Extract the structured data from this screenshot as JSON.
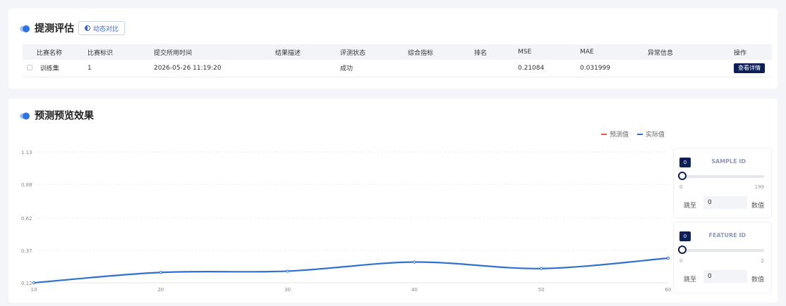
{
  "eval": {
    "title": "提测评估",
    "compare_label": "动态对比",
    "columns": [
      "比赛名称",
      "比赛标识",
      "提交所用时间",
      "结果描述",
      "评测状态",
      "综合指标",
      "排名",
      "MSE",
      "MAE",
      "异常信息",
      "操作"
    ],
    "rows": [
      {
        "name": "训练集",
        "id": "1",
        "time": "2026-05-26 11:19:20",
        "desc": "",
        "status": "成功",
        "score": "",
        "rank": "",
        "mse": "0.21084",
        "mae": "0.031999",
        "error": "",
        "action": "查看详情"
      }
    ]
  },
  "preview": {
    "title": "预测预览效果",
    "legend": [
      {
        "label": "预测值",
        "color": "#e05a4f"
      },
      {
        "label": "实际值",
        "color": "#2f6fd0"
      }
    ]
  },
  "chart_data": {
    "type": "line",
    "x": [
      10,
      20,
      30,
      40,
      50,
      60
    ],
    "xticks": [
      "10",
      "20",
      "30",
      "40",
      "50",
      "60"
    ],
    "yticks": [
      "0.12",
      "0.37",
      "0.62",
      "0.88",
      "1.13"
    ],
    "ylim": [
      0.12,
      1.13
    ],
    "grid": true,
    "series": [
      {
        "name": "实际值",
        "color": "#2f6fd0",
        "values": [
          0.12,
          0.2,
          0.21,
          0.28,
          0.23,
          0.31
        ]
      }
    ]
  },
  "controls": {
    "sample": {
      "label": "SAMPLE ID",
      "value": "0",
      "min": "0",
      "max": "199",
      "jump": "跳至",
      "input": "0",
      "unit": "数值"
    },
    "feature": {
      "label": "FEATURE ID",
      "value": "0",
      "min": "0",
      "max": "2",
      "jump": "跳至",
      "input": "0",
      "unit": "数值"
    }
  }
}
